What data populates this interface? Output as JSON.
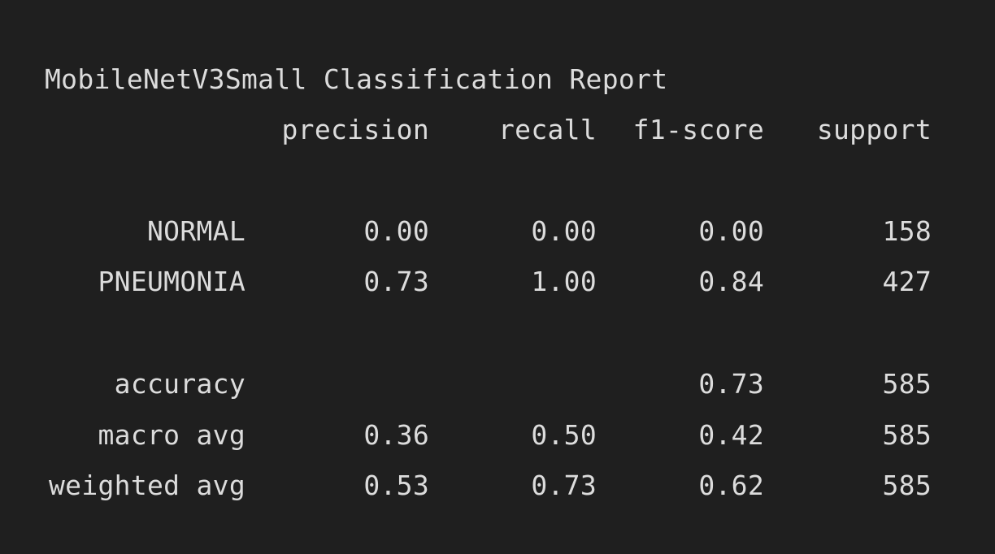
{
  "report": {
    "title": "MobileNetV3Small Classification Report",
    "columns": [
      "precision",
      "recall",
      "f1-score",
      "support"
    ],
    "rows": [
      {
        "label": "NORMAL",
        "precision": "0.00",
        "recall": "0.00",
        "f1": "0.00",
        "support": "158"
      },
      {
        "label": "PNEUMONIA",
        "precision": "0.73",
        "recall": "1.00",
        "f1": "0.84",
        "support": "427"
      },
      {
        "label": "accuracy",
        "precision": "",
        "recall": "",
        "f1": "0.73",
        "support": "585"
      },
      {
        "label": "macro avg",
        "precision": "0.36",
        "recall": "0.50",
        "f1": "0.42",
        "support": "585"
      },
      {
        "label": "weighted avg",
        "precision": "0.53",
        "recall": "0.73",
        "f1": "0.62",
        "support": "585"
      }
    ]
  },
  "colors": {
    "background": "#1f1f1f",
    "text": "#dcdcdc"
  }
}
